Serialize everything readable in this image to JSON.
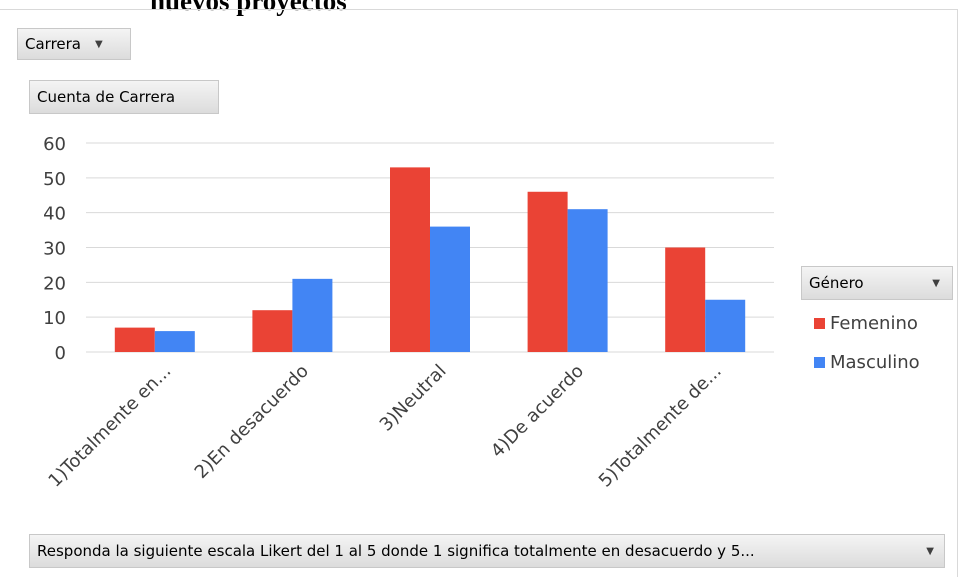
{
  "header": {
    "partial_title": "nuevos proyectos"
  },
  "filters": {
    "carrera_label": "Carrera",
    "count_label": "Cuenta de Carrera",
    "genero_label": "Género",
    "axis_field_label": "Responda la siguiente escala Likert del 1 al 5 donde 1  significa  totalmente en desacuerdo y 5..."
  },
  "chart_data": {
    "type": "bar",
    "categories": [
      "1)Totalmente en...",
      "2)En desacuerdo",
      "3)Neutral",
      "4)De acuerdo",
      "5)Totalmente de..."
    ],
    "series": [
      {
        "name": "Femenino",
        "values": [
          7,
          12,
          53,
          46,
          30
        ],
        "color": "#ea4335"
      },
      {
        "name": "Masculino",
        "values": [
          6,
          21,
          36,
          41,
          15
        ],
        "color": "#4285f4"
      }
    ],
    "ylim": [
      0,
      60
    ],
    "yticks": [
      0,
      10,
      20,
      30,
      40,
      50,
      60
    ],
    "grid": true,
    "legend_position": "right",
    "gridline_color": "#d9d9d9",
    "axis_text_color": "#404040"
  }
}
